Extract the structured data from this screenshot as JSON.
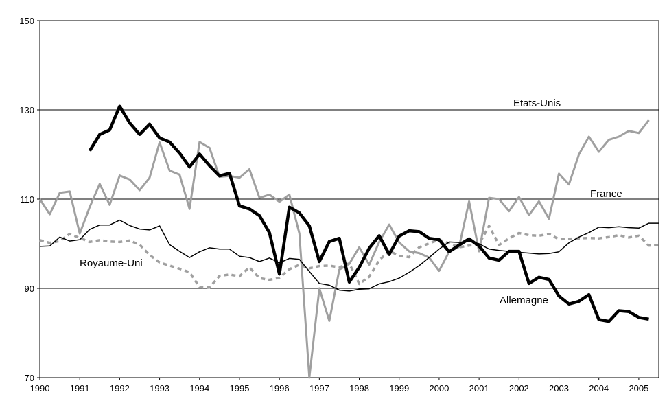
{
  "chart_data": {
    "type": "line",
    "title": "",
    "xlabel": "",
    "ylabel": "",
    "xlim": [
      1990,
      2005.5
    ],
    "ylim": [
      70,
      150
    ],
    "y_ticks": [
      70,
      90,
      110,
      130,
      150
    ],
    "x_ticks": [
      1990,
      1991,
      1992,
      1993,
      1994,
      1995,
      1996,
      1997,
      1998,
      1999,
      2000,
      2001,
      2002,
      2003,
      2004,
      2005
    ],
    "gridlines": [
      90,
      110,
      130,
      150
    ],
    "series": [
      {
        "name": "Etats-Unis",
        "style": "grey",
        "x0": 1990,
        "step": 0.25,
        "values": [
          110.0,
          106.6,
          111.4,
          111.7,
          102.3,
          108.2,
          113.4,
          108.7,
          115.3,
          114.4,
          112.0,
          114.8,
          122.7,
          116.4,
          115.5,
          107.8,
          122.8,
          121.5,
          115.0,
          115.2,
          114.8,
          116.7,
          110.3,
          111.0,
          109.4,
          111.0,
          102.3,
          70.0,
          90.0,
          82.7,
          94.2,
          95.5,
          99.2,
          95.3,
          100.4,
          104.3,
          100.3,
          98.3,
          97.9,
          96.9,
          93.9,
          98.2,
          99.3,
          109.5,
          98.3,
          110.3,
          110.0,
          107.3,
          110.5,
          106.4,
          109.5,
          105.6,
          115.7,
          113.3,
          120.0,
          124.0,
          120.6,
          123.3,
          124.0,
          125.3,
          124.8,
          127.7
        ]
      },
      {
        "name": "Allemagne",
        "style": "black-thick",
        "x0": 1991.25,
        "step": 0.25,
        "values": [
          120.8,
          124.5,
          125.5,
          130.8,
          127.1,
          124.5,
          126.8,
          123.7,
          122.8,
          120.3,
          117.2,
          120.1,
          117.5,
          115.2,
          115.8,
          108.5,
          107.8,
          106.3,
          102.5,
          93.2,
          108.2,
          106.9,
          104.0,
          96.0,
          100.5,
          101.2,
          91.4,
          94.7,
          99.0,
          101.8,
          97.6,
          101.7,
          102.9,
          102.7,
          101.2,
          100.9,
          98.2,
          99.7,
          101.1,
          99.5,
          96.8,
          96.3,
          98.3,
          98.3,
          91.1,
          92.5,
          92.0,
          88.3,
          86.5,
          87.1,
          88.6,
          83.0,
          82.6,
          85.0,
          84.8,
          83.5,
          83.1
        ]
      },
      {
        "name": "France",
        "style": "black-thin",
        "x0": 1990,
        "step": 0.25,
        "values": [
          99.4,
          99.5,
          101.5,
          100.6,
          100.9,
          103.2,
          104.2,
          104.2,
          105.3,
          104.1,
          103.3,
          103.1,
          104.0,
          99.8,
          98.3,
          96.9,
          98.2,
          99.1,
          98.8,
          98.8,
          97.2,
          96.9,
          96.0,
          96.8,
          95.7,
          96.7,
          96.5,
          93.8,
          91.1,
          90.7,
          89.6,
          89.4,
          89.8,
          89.9,
          91.0,
          91.5,
          92.3,
          93.6,
          95.1,
          96.9,
          98.8,
          100.4,
          100.3,
          100.6,
          100.0,
          98.8,
          98.5,
          98.3,
          98.1,
          97.9,
          97.7,
          97.8,
          98.2,
          100.2,
          101.5,
          102.5,
          103.7,
          103.6,
          103.8,
          103.6,
          103.5,
          104.6,
          104.6
        ]
      },
      {
        "name": "Royaume-Uni",
        "style": "grey-dashed",
        "x0": 1990,
        "step": 0.25,
        "values": [
          100.8,
          100.2,
          100.6,
          102.2,
          101.3,
          100.4,
          100.8,
          100.5,
          100.4,
          100.7,
          99.8,
          97.5,
          95.8,
          95.1,
          94.4,
          93.6,
          90.3,
          90.2,
          92.8,
          93.1,
          92.7,
          94.7,
          92.3,
          91.9,
          92.4,
          94.3,
          95.3,
          94.5,
          95.0,
          95.1,
          94.7,
          95.6,
          91.0,
          92.6,
          96.3,
          98.4,
          97.3,
          97.0,
          99.2,
          100.1,
          100.9,
          100.1,
          99.2,
          99.6,
          99.9,
          104.0,
          99.7,
          101.2,
          102.4,
          101.9,
          101.8,
          102.2,
          101.0,
          101.1,
          101.2,
          101.3,
          101.2,
          101.5,
          101.9,
          101.4,
          101.8,
          99.6,
          99.7
        ]
      }
    ],
    "annotations": [
      {
        "text": "Etats-Unis",
        "series": "Etats-Unis"
      },
      {
        "text": "France",
        "series": "France"
      },
      {
        "text": "Royaume-Uni",
        "series": "Royaume-Uni"
      },
      {
        "text": "Allemagne",
        "series": "Allemagne"
      }
    ]
  },
  "colors": {
    "black": "#000000",
    "grey": "#a0a0a0",
    "background": "#ffffff"
  }
}
